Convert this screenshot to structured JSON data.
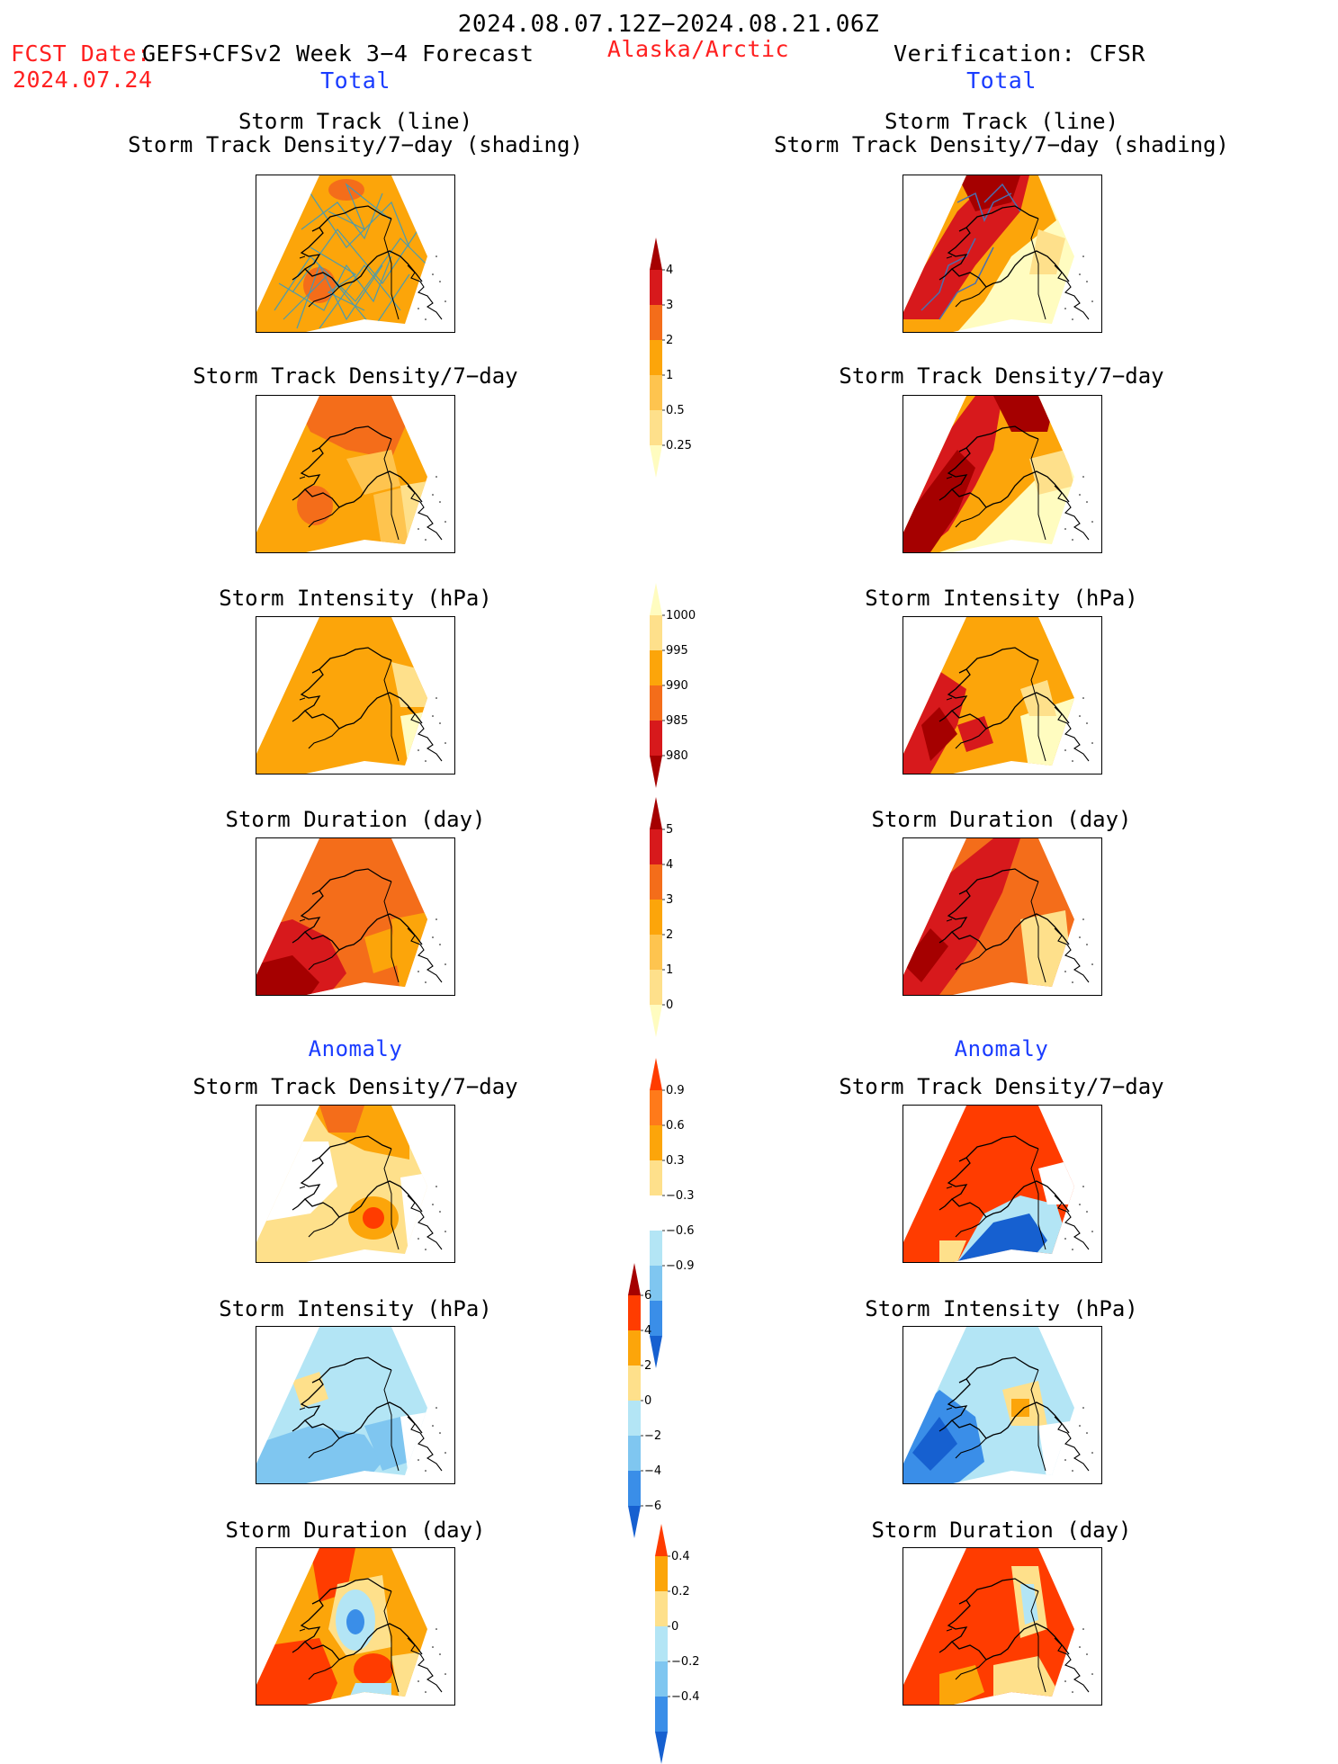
{
  "header": {
    "date_range": "2024.08.07.12Z−2024.08.21.06Z",
    "fcst_label": "FCST Date:",
    "fcst_model": "GEFS+CFSv2 Week 3−4 Forecast",
    "fcst_date": "2024.07.24",
    "region": "Alaska/Arctic",
    "verification": "Verification: CFSR",
    "left_total": "Total",
    "right_total": "Total"
  },
  "sections": {
    "anomaly_left": "Anomaly",
    "anomaly_right": "Anomaly"
  },
  "panels": {
    "track_line": "Storm Track (line)",
    "track_shading": "Storm Track Density/7−day (shading)",
    "density": "Storm Track Density/7−day",
    "intensity": "Storm Intensity (hPa)",
    "duration": "Storm Duration (day)",
    "anom_density": "Storm Track Density/7−day",
    "anom_intensity": "Storm Intensity (hPa)",
    "anom_duration": "Storm Duration (day)"
  },
  "colorbars": {
    "density_total": {
      "labels": [
        "4",
        "3",
        "2",
        "1",
        "0.5",
        "0.25"
      ],
      "colors": [
        "#a50000",
        "#d7191c",
        "#f46d1a",
        "#fca50a",
        "#fec44f",
        "#fee08b",
        "#fffcc0"
      ]
    },
    "intensity_total": {
      "labels": [
        "1000",
        "995",
        "990",
        "985",
        "980"
      ],
      "colors": [
        "#fffcc0",
        "#fee08b",
        "#fca50a",
        "#f46d1a",
        "#d7191c",
        "#a50000"
      ]
    },
    "duration_total": {
      "labels": [
        "5",
        "4",
        "3",
        "2",
        "1",
        "0"
      ],
      "colors": [
        "#a50000",
        "#d7191c",
        "#f46d1a",
        "#fca50a",
        "#fec44f",
        "#fee08b",
        "#fffcc0"
      ]
    },
    "density_anom": {
      "labels": [
        "0.9",
        "0.6",
        "0.3",
        "−0.3",
        "−0.6",
        "−0.9"
      ],
      "colors": [
        "#ff3c00",
        "#ff7a1a",
        "#fca50a",
        "#fee08b",
        "#ffffff",
        "#b3e5f5",
        "#7fc6f0",
        "#3a8ee8",
        "#1660d0"
      ]
    },
    "intensity_anom": {
      "labels": [
        "6",
        "4",
        "2",
        "0",
        "−2",
        "−4",
        "−6"
      ],
      "colors": [
        "#a50000",
        "#ff3c00",
        "#fca50a",
        "#fee08b",
        "#b3e5f5",
        "#7fc6f0",
        "#3a8ee8",
        "#1660d0"
      ]
    },
    "duration_anom": {
      "labels": [
        "0.4",
        "0.2",
        "0",
        "−0.2",
        "−0.4"
      ],
      "colors": [
        "#ff3c00",
        "#fca50a",
        "#fee08b",
        "#b3e5f5",
        "#7fc6f0",
        "#3a8ee8",
        "#1660d0"
      ]
    }
  },
  "palette": {
    "yellow_light": "#fffcc0",
    "yellow": "#fee08b",
    "orange_light": "#fec44f",
    "orange": "#fca50a",
    "orange_dark": "#f46d1a",
    "red": "#d7191c",
    "red_dark": "#a50000",
    "blue_light": "#b3e5f5",
    "blue": "#7fc6f0",
    "blue_dark": "#1660d0",
    "track_line": "#3a9bbf"
  }
}
